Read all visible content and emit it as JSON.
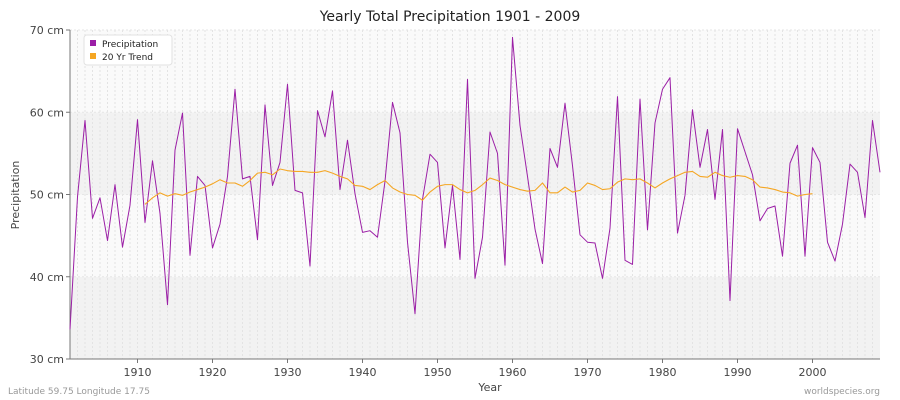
{
  "chart_data": {
    "type": "line",
    "title": "Yearly Total Precipitation 1901 - 2009",
    "xlabel": "Year",
    "ylabel": "Precipitation",
    "xlim": [
      1901,
      2009
    ],
    "ylim": [
      30,
      70
    ],
    "x_ticks": [
      1910,
      1920,
      1930,
      1940,
      1950,
      1960,
      1970,
      1980,
      1990,
      2000
    ],
    "y_ticks": [
      30,
      40,
      50,
      60,
      70
    ],
    "y_tick_labels": [
      "30 cm",
      "40 cm",
      "50 cm",
      "60 cm",
      "70 cm"
    ],
    "legend": {
      "placement": "top-left",
      "entries": [
        "Precipitation",
        "20 Yr Trend"
      ]
    },
    "series": [
      {
        "name": "Precipitation",
        "color": "#9b1fa6",
        "x_start": 1901,
        "values": [
          33.6,
          49.7,
          59.0,
          47.1,
          49.6,
          44.4,
          51.2,
          43.6,
          48.7,
          59.1,
          46.6,
          54.1,
          47.7,
          36.6,
          55.4,
          59.9,
          42.6,
          52.2,
          51.1,
          43.5,
          46.4,
          52.2,
          62.8,
          51.9,
          52.2,
          44.5,
          60.9,
          51.1,
          53.9,
          63.4,
          50.5,
          50.2,
          41.3,
          60.2,
          57.0,
          62.6,
          50.6,
          56.6,
          50.1,
          45.4,
          45.6,
          44.8,
          51.6,
          61.2,
          57.5,
          44.2,
          35.5,
          49.4,
          54.9,
          53.9,
          43.5,
          51.1,
          42.1,
          64.0,
          39.8,
          44.8,
          57.6,
          55.0,
          41.4,
          69.1,
          58.4,
          52.2,
          45.8,
          41.6,
          55.6,
          53.3,
          61.1,
          53.5,
          45.1,
          44.2,
          44.1,
          39.8,
          45.9,
          61.9,
          42.0,
          41.5,
          61.6,
          45.7,
          58.7,
          62.8,
          64.2,
          45.3,
          49.9,
          60.3,
          53.3,
          57.9,
          49.4,
          57.9,
          37.1,
          58.0,
          55.2,
          52.4,
          46.8,
          48.3,
          48.6,
          42.5,
          53.8,
          56.0,
          42.5,
          55.7,
          53.9,
          44.2,
          41.9,
          46.4,
          53.7,
          52.7,
          47.2,
          59.0,
          52.7
        ]
      },
      {
        "name": "20 Yr Trend",
        "color": "#f5a623",
        "x_start": 1911,
        "values": [
          48.8,
          49.6,
          50.2,
          49.8,
          50.1,
          49.9,
          50.3,
          50.6,
          50.9,
          51.3,
          51.8,
          51.4,
          51.4,
          51.0,
          51.7,
          52.6,
          52.7,
          52.4,
          53.1,
          52.9,
          52.8,
          52.8,
          52.7,
          52.7,
          52.9,
          52.6,
          52.2,
          51.9,
          51.1,
          51.0,
          50.6,
          51.2,
          51.7,
          50.8,
          50.3,
          50.0,
          49.9,
          49.3,
          50.3,
          51.0,
          51.2,
          51.2,
          50.6,
          50.2,
          50.5,
          51.2,
          52.0,
          51.7,
          51.2,
          50.9,
          50.6,
          50.4,
          50.5,
          51.4,
          50.2,
          50.2,
          50.9,
          50.3,
          50.5,
          51.4,
          51.1,
          50.6,
          50.7,
          51.5,
          51.9,
          51.8,
          51.9,
          51.4,
          50.8,
          51.4,
          51.9,
          52.3,
          52.7,
          52.8,
          52.2,
          52.1,
          52.7,
          52.3,
          52.1,
          52.3,
          52.2,
          51.8,
          50.9,
          50.8,
          50.6,
          50.3,
          50.2,
          49.8,
          50.0,
          50.1
        ]
      }
    ]
  },
  "units": {
    "y_suffix": " cm"
  },
  "footer": {
    "location": "Latitude 59.75 Longitude 17.75",
    "source": "worldspecies.org"
  }
}
